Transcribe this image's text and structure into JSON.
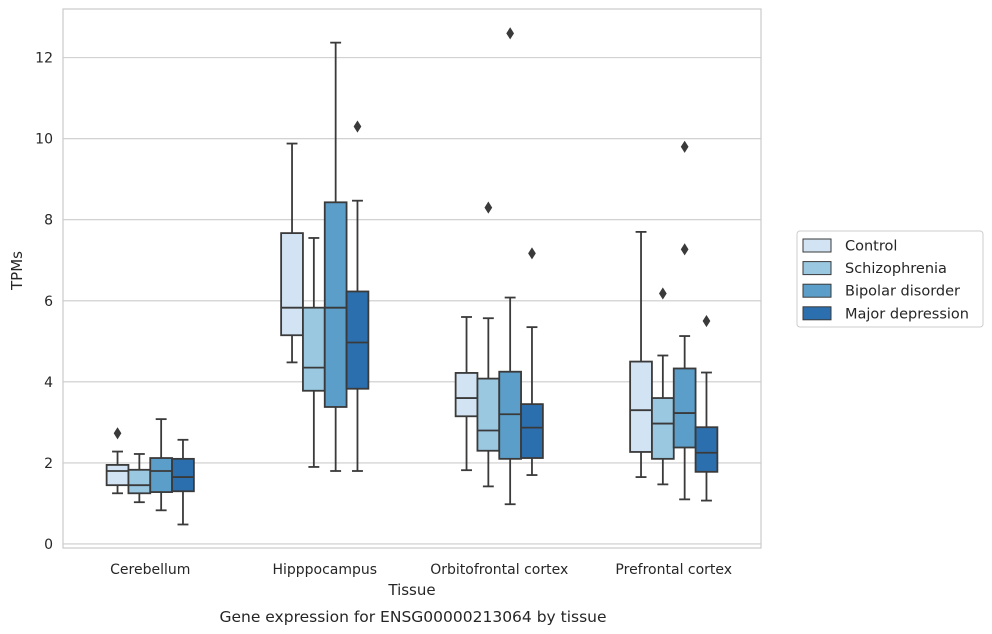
{
  "chart_data": {
    "type": "boxplot",
    "title": "",
    "caption": "Gene expression for ENSG00000213064 by tissue",
    "xlabel": "Tissue",
    "ylabel": "TPMs",
    "ylim": [
      -0.1,
      13.2
    ],
    "yticks": [
      0,
      2,
      4,
      6,
      8,
      10,
      12
    ],
    "grid": "horizontal",
    "legend_position": "right",
    "categories": [
      "Cerebellum",
      "Hipppocampus",
      "Orbitofrontal cortex",
      "Prefrontal cortex"
    ],
    "series": [
      {
        "name": "Control",
        "color": "#d2e3f3",
        "boxes": [
          {
            "whislo": 1.25,
            "q1": 1.45,
            "med": 1.8,
            "q3": 1.95,
            "whishi": 2.28,
            "fliers": [
              2.73
            ]
          },
          {
            "whislo": 4.48,
            "q1": 5.15,
            "med": 5.83,
            "q3": 7.67,
            "whishi": 9.88,
            "fliers": []
          },
          {
            "whislo": 1.82,
            "q1": 3.15,
            "med": 3.6,
            "q3": 4.22,
            "whishi": 5.6,
            "fliers": []
          },
          {
            "whislo": 1.65,
            "q1": 2.27,
            "med": 3.3,
            "q3": 4.5,
            "whishi": 7.7,
            "fliers": []
          }
        ]
      },
      {
        "name": "Schizophrenia",
        "color": "#9ac8e0",
        "boxes": [
          {
            "whislo": 1.03,
            "q1": 1.25,
            "med": 1.45,
            "q3": 1.83,
            "whishi": 2.22,
            "fliers": []
          },
          {
            "whislo": 1.9,
            "q1": 3.78,
            "med": 4.35,
            "q3": 5.83,
            "whishi": 7.55,
            "fliers": []
          },
          {
            "whislo": 1.42,
            "q1": 2.3,
            "med": 2.8,
            "q3": 4.08,
            "whishi": 5.57,
            "fliers": [
              8.3
            ]
          },
          {
            "whislo": 1.47,
            "q1": 2.1,
            "med": 2.97,
            "q3": 3.6,
            "whishi": 4.65,
            "fliers": [
              6.18
            ]
          }
        ]
      },
      {
        "name": "Bipolar disorder",
        "color": "#5a9ec9",
        "boxes": [
          {
            "whislo": 0.83,
            "q1": 1.28,
            "med": 1.8,
            "q3": 2.12,
            "whishi": 3.08,
            "fliers": []
          },
          {
            "whislo": 1.8,
            "q1": 3.38,
            "med": 5.83,
            "q3": 8.43,
            "whishi": 12.37,
            "fliers": []
          },
          {
            "whislo": 0.98,
            "q1": 2.1,
            "med": 3.2,
            "q3": 4.25,
            "whishi": 6.08,
            "fliers": [
              12.6
            ]
          },
          {
            "whislo": 1.1,
            "q1": 2.38,
            "med": 3.23,
            "q3": 4.33,
            "whishi": 5.13,
            "fliers": [
              7.27,
              9.8
            ]
          }
        ]
      },
      {
        "name": "Major depression",
        "color": "#2c6fae",
        "boxes": [
          {
            "whislo": 0.48,
            "q1": 1.3,
            "med": 1.65,
            "q3": 2.1,
            "whishi": 2.57,
            "fliers": []
          },
          {
            "whislo": 1.8,
            "q1": 3.83,
            "med": 4.97,
            "q3": 6.23,
            "whishi": 8.47,
            "fliers": [
              10.3
            ]
          },
          {
            "whislo": 1.7,
            "q1": 2.12,
            "med": 2.87,
            "q3": 3.45,
            "whishi": 5.35,
            "fliers": [
              7.17
            ]
          },
          {
            "whislo": 1.07,
            "q1": 1.78,
            "med": 2.25,
            "q3": 2.88,
            "whishi": 4.23,
            "fliers": [
              5.5
            ]
          }
        ]
      }
    ]
  }
}
